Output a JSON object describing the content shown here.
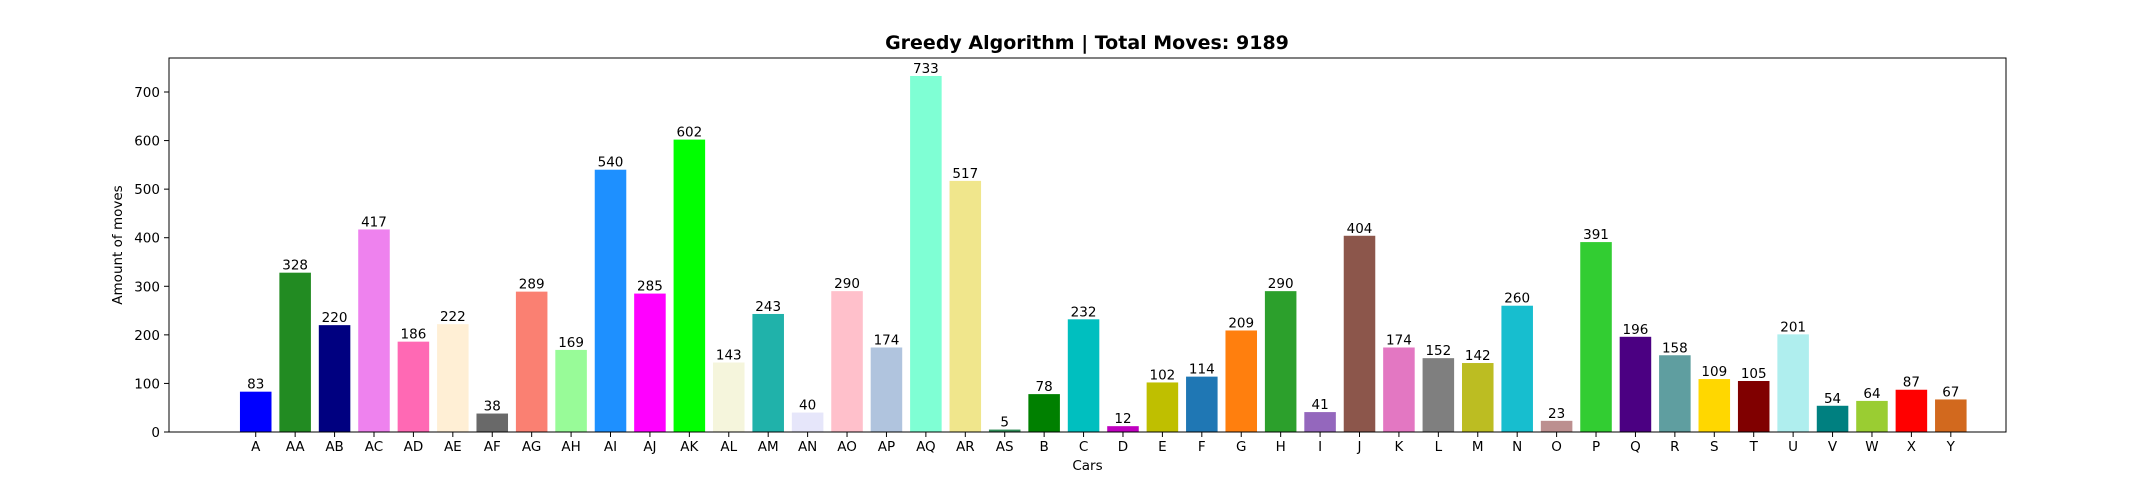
{
  "chart_data": {
    "type": "bar",
    "title": "Greedy Algorithm | Total Moves: 9189",
    "xlabel": "Cars",
    "ylabel": "Amount of moves",
    "ylim": [
      0,
      770
    ],
    "yticks": [
      0,
      100,
      200,
      300,
      400,
      500,
      600,
      700
    ],
    "grid": false,
    "categories": [
      "A",
      "AA",
      "AB",
      "AC",
      "AD",
      "AE",
      "AF",
      "AG",
      "AH",
      "AI",
      "AJ",
      "AK",
      "AL",
      "AM",
      "AN",
      "AO",
      "AP",
      "AQ",
      "AR",
      "AS",
      "B",
      "C",
      "D",
      "E",
      "F",
      "G",
      "H",
      "I",
      "J",
      "K",
      "L",
      "M",
      "N",
      "O",
      "P",
      "Q",
      "R",
      "S",
      "T",
      "U",
      "V",
      "W",
      "X",
      "Y"
    ],
    "values": [
      83,
      328,
      220,
      417,
      186,
      222,
      38,
      289,
      169,
      540,
      285,
      602,
      143,
      243,
      40,
      290,
      174,
      733,
      517,
      5,
      78,
      232,
      12,
      102,
      114,
      209,
      290,
      41,
      404,
      174,
      152,
      142,
      260,
      23,
      391,
      196,
      158,
      109,
      105,
      201,
      54,
      64,
      87,
      67
    ],
    "colors": [
      "#0000ff",
      "#228b22",
      "#000080",
      "#ee82ee",
      "#ff69b4",
      "#ffefd5",
      "#696969",
      "#fa8072",
      "#98fb98",
      "#1e90ff",
      "#ff00ff",
      "#00ff00",
      "#f5f5dc",
      "#20b2aa",
      "#e6e6fa",
      "#ffc0cb",
      "#b0c4de",
      "#7fffd4",
      "#f0e68c",
      "#2e8b57",
      "#008000",
      "#00bfbf",
      "#bf00bf",
      "#bfbf00",
      "#1f77b4",
      "#ff7f0e",
      "#2ca02c",
      "#9467bd",
      "#8c564b",
      "#e377c2",
      "#7f7f7f",
      "#bcbd22",
      "#17becf",
      "#bc8f8f",
      "#32cd32",
      "#4b0082",
      "#5f9ea0",
      "#ffd700",
      "#800000",
      "#afeeee",
      "#008080",
      "#9acd32",
      "#ff0000",
      "#d2691e"
    ]
  }
}
